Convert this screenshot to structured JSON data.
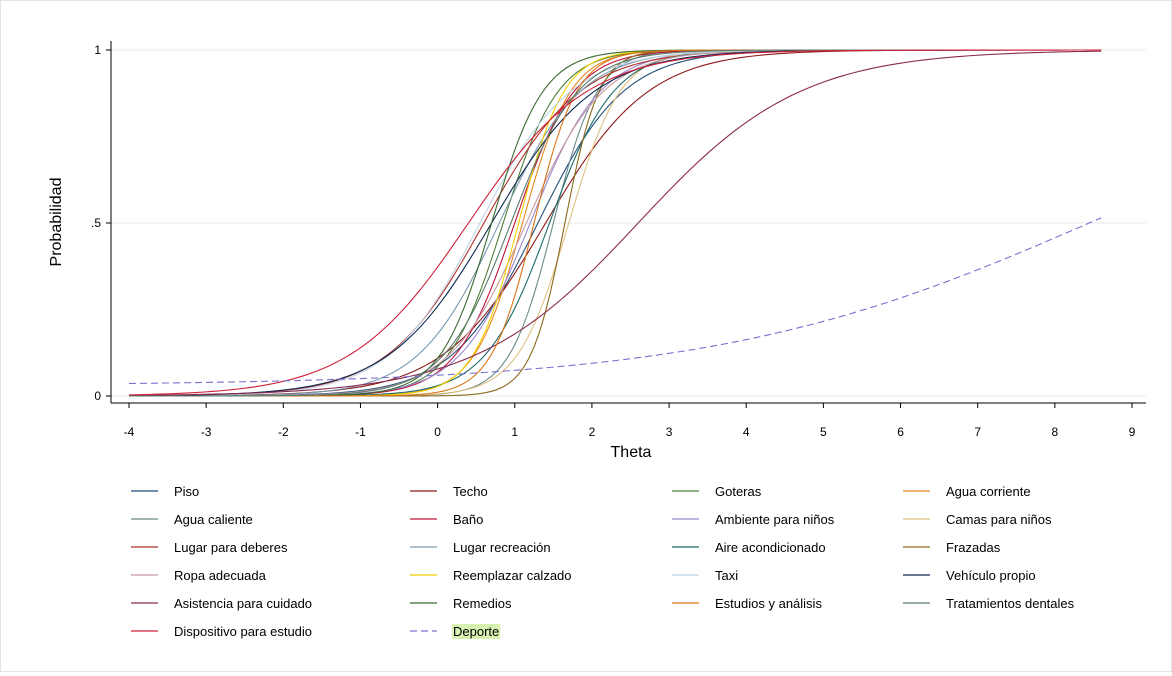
{
  "chart_data": {
    "type": "line",
    "title": "",
    "xlabel": "Theta",
    "ylabel": "Probabilidad",
    "xlim": [
      -4,
      9
    ],
    "ylim": [
      0,
      1
    ],
    "x_ticks": [
      "-4",
      "-3",
      "-2",
      "-1",
      "0",
      "1",
      "2",
      "3",
      "4",
      "5",
      "6",
      "7",
      "8",
      "9"
    ],
    "y_ticks": [
      {
        "value": 0,
        "label": "0"
      },
      {
        "value": 0.5,
        "label": ".5"
      },
      {
        "value": 1,
        "label": "1"
      }
    ],
    "grid": "horizontal",
    "legend_position": "bottom",
    "theta_range": [
      -4,
      8.6
    ],
    "series": [
      {
        "name": "Piso",
        "color": "#1f4e79",
        "a": 1.8,
        "b": 1.3,
        "c": 0
      },
      {
        "name": "Techo",
        "color": "#8b1a1a",
        "a": 1.5,
        "b": 1.4,
        "c": 0
      },
      {
        "name": "Goteras",
        "color": "#4f7f3a",
        "a": 2.8,
        "b": 0.85,
        "c": 0
      },
      {
        "name": "Agua corriente",
        "color": "#e8871e",
        "a": 3.2,
        "b": 1.1,
        "c": 0
      },
      {
        "name": "Agua caliente",
        "color": "#6a8a8a",
        "a": 3.5,
        "b": 1.5,
        "c": 0
      },
      {
        "name": "Baño",
        "color": "#c0143c",
        "a": 2.6,
        "b": 1.0,
        "c": 0
      },
      {
        "name": "Ambiente para niños",
        "color": "#9a8ad0",
        "a": 2.2,
        "b": 1.2,
        "c": 0
      },
      {
        "name": "Camas para niños",
        "color": "#e0c080",
        "a": 3.0,
        "b": 1.7,
        "c": 0
      },
      {
        "name": "Lugar para deberes",
        "color": "#b0302a",
        "a": 1.6,
        "b": 0.6,
        "c": 0
      },
      {
        "name": "Lugar recreación",
        "color": "#7a9ab0",
        "a": 1.9,
        "b": 0.8,
        "c": 0
      },
      {
        "name": "Aire acondicionado",
        "color": "#1d6a6a",
        "a": 2.4,
        "b": 1.45,
        "c": 0
      },
      {
        "name": "Frazadas",
        "color": "#8a6a1a",
        "a": 4.5,
        "b": 1.65,
        "c": 0
      },
      {
        "name": "Ropa adecuada",
        "color": "#c89aa0",
        "a": 2.0,
        "b": 1.15,
        "c": 0
      },
      {
        "name": "Reemplazar calzado",
        "color": "#f2d000",
        "a": 3.4,
        "b": 1.05,
        "c": 0
      },
      {
        "name": "Taxi",
        "color": "#c0d4e4",
        "a": 1.7,
        "b": 0.55,
        "c": 0
      },
      {
        "name": "Vehículo propio",
        "color": "#0e2a50",
        "a": 1.5,
        "b": 0.7,
        "c": 0
      },
      {
        "name": "Asistencia para cuidado",
        "color": "#8a2a50",
        "a": 0.95,
        "b": 2.6,
        "c": 0
      },
      {
        "name": "Remedios",
        "color": "#3a6a30",
        "a": 3.0,
        "b": 0.7,
        "c": 0
      },
      {
        "name": "Estudios y análisis",
        "color": "#d9761a",
        "a": 3.6,
        "b": 1.25,
        "c": 0
      },
      {
        "name": "Tratamientos dentales",
        "color": "#5a7a6a",
        "a": 2.3,
        "b": 0.95,
        "c": 0
      },
      {
        "name": "Dispositivo para estudio",
        "color": "#d0203a",
        "a": 1.3,
        "b": 0.4,
        "c": 0
      },
      {
        "name": "Deporte",
        "color": "#7a70d0",
        "a": 0.4,
        "b": 8.6,
        "c": 0.03,
        "dashed": true,
        "highlight": true
      }
    ]
  }
}
